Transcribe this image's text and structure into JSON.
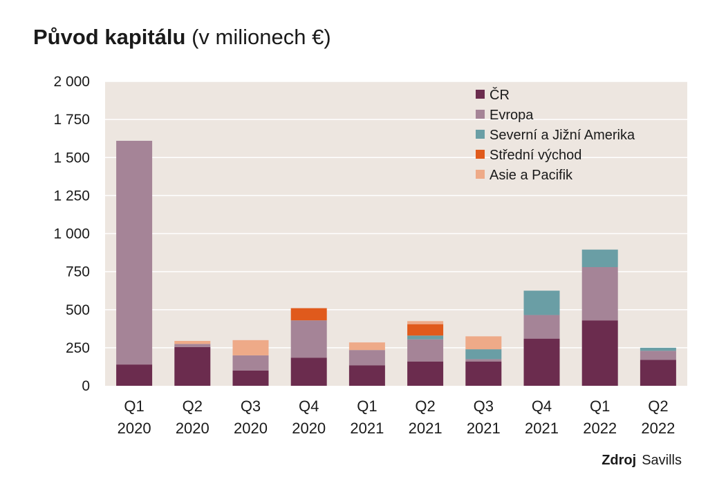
{
  "title": {
    "bold": "Původ kapitálu",
    "light": "(v milionech €)"
  },
  "source": {
    "label": "Zdroj",
    "value": "Savills"
  },
  "colors": {
    "plot_bg": "#ede6e0",
    "grid": "#ffffff",
    "CR": "#6b2c4e",
    "Evropa": "#a58497",
    "Amerika": "#6a9ea5",
    "Vychod": "#e05a1c",
    "Asie": "#eeaa88"
  },
  "chart_data": {
    "type": "bar",
    "stacked": true,
    "title": "Původ kapitálu (v milionech €)",
    "xlabel": "",
    "ylabel": "",
    "ylim": [
      0,
      2000
    ],
    "yticks": [
      0,
      250,
      500,
      750,
      1000,
      1250,
      1500,
      1750,
      2000
    ],
    "ytick_labels": [
      "0",
      "250",
      "500",
      "750",
      "1 000",
      "1 250",
      "1 500",
      "1 750",
      "2 000"
    ],
    "categories": [
      [
        "Q1",
        "2020"
      ],
      [
        "Q2",
        "2020"
      ],
      [
        "Q3",
        "2020"
      ],
      [
        "Q4",
        "2020"
      ],
      [
        "Q1",
        "2021"
      ],
      [
        "Q2",
        "2021"
      ],
      [
        "Q3",
        "2021"
      ],
      [
        "Q4",
        "2021"
      ],
      [
        "Q1",
        "2022"
      ],
      [
        "Q2",
        "2022"
      ]
    ],
    "legend_position": "top-right",
    "series": [
      {
        "name": "ČR",
        "color_key": "CR",
        "values": [
          140,
          255,
          100,
          185,
          135,
          160,
          160,
          310,
          430,
          170
        ]
      },
      {
        "name": "Evropa",
        "color_key": "Evropa",
        "values": [
          1470,
          20,
          100,
          245,
          100,
          145,
          15,
          155,
          350,
          60
        ]
      },
      {
        "name": "Severní a Jižní Amerika",
        "color_key": "Amerika",
        "values": [
          0,
          0,
          0,
          0,
          0,
          25,
          65,
          160,
          115,
          20
        ]
      },
      {
        "name": "Střední východ",
        "color_key": "Vychod",
        "values": [
          0,
          0,
          0,
          80,
          0,
          75,
          0,
          0,
          0,
          0
        ]
      },
      {
        "name": "Asie a Pacifik",
        "color_key": "Asie",
        "values": [
          0,
          20,
          100,
          0,
          50,
          20,
          85,
          0,
          0,
          0
        ]
      }
    ]
  }
}
